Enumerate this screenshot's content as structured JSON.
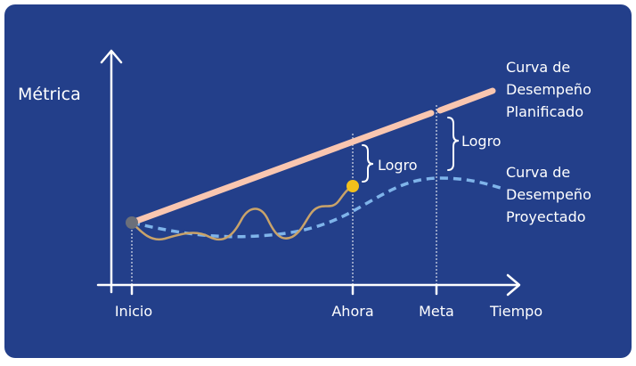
{
  "axes": {
    "y_label": "Métrica",
    "x_label": "Tiempo"
  },
  "markers": [
    "Inicio",
    "Ahora",
    "Meta"
  ],
  "planned_curve": {
    "label_lines": [
      "Curva de",
      "Desempeño",
      "Planificado"
    ]
  },
  "projected_curve": {
    "label_lines": [
      "Curva de",
      "Desempeño",
      "Proyectado"
    ]
  },
  "gaps": [
    "Logro",
    "Logro"
  ]
}
